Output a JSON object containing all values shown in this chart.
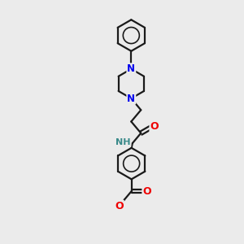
{
  "background_color": "#ebebeb",
  "bond_color": "#1a1a1a",
  "N_color": "#0000ee",
  "O_color": "#ee0000",
  "NH_color": "#3a8a8a",
  "line_width": 1.6,
  "figsize": [
    3.0,
    3.0
  ],
  "dpi": 100,
  "xlim": [
    0,
    10
  ],
  "ylim": [
    0,
    13
  ]
}
